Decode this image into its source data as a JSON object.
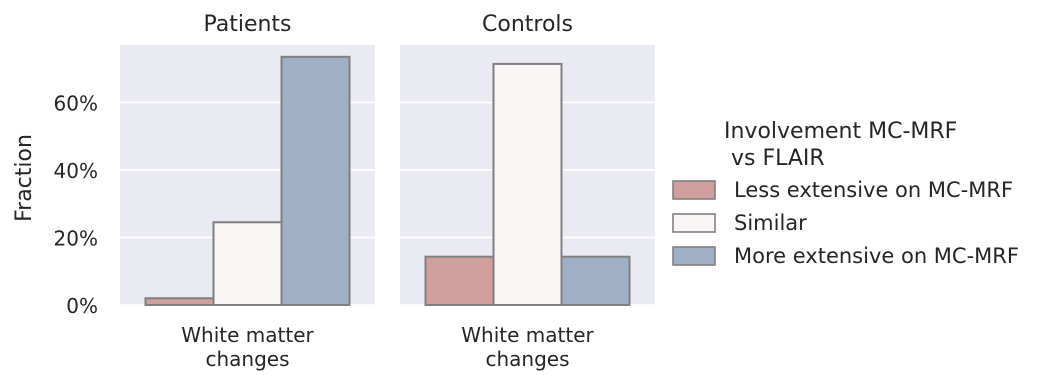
{
  "chart_data": {
    "type": "bar",
    "ylabel": "Fraction",
    "ylim": [
      0,
      77
    ],
    "yticks": [
      0,
      20,
      40,
      60
    ],
    "ytick_labels": [
      "0%",
      "20%",
      "40%",
      "60%"
    ],
    "grid": true,
    "legend": {
      "title": "Involvement MC-MRF\n vs FLAIR",
      "placement": "right"
    },
    "series": [
      {
        "name": "Less extensive on MC-MRF",
        "color": "#d29f9f"
      },
      {
        "name": "Similar",
        "color": "#f8f5f4"
      },
      {
        "name": "More extensive on MC-MRF",
        "color": "#9fafc6"
      }
    ],
    "panels": [
      {
        "title": "Patients",
        "category": "White matter\nchanges",
        "values": [
          2,
          24.5,
          73.5
        ]
      },
      {
        "title": "Controls",
        "category": "White matter\nchanges",
        "values": [
          14.3,
          71.4,
          14.3
        ]
      }
    ],
    "colors": {
      "panel_bg": "#eaeaf2",
      "grid": "#ffffff",
      "bar_edge": "#808080"
    }
  }
}
